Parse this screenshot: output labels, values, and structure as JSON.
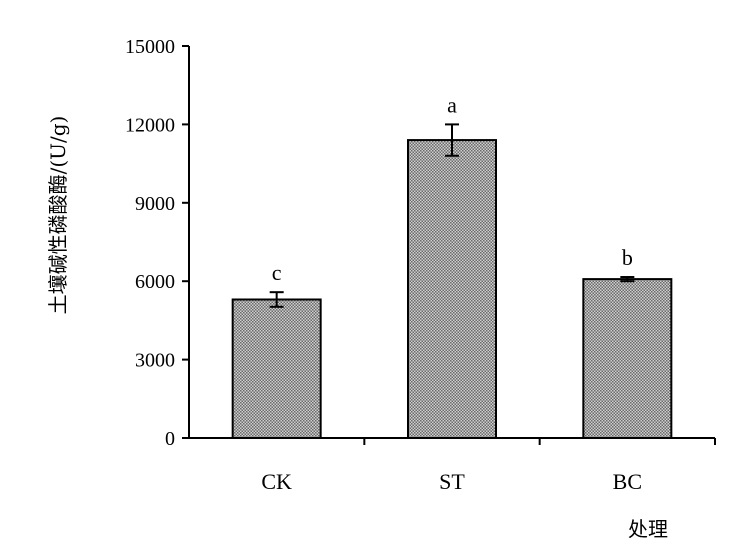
{
  "chart_data": {
    "type": "bar",
    "categories": [
      "CK",
      "ST",
      "BC"
    ],
    "values": [
      5300,
      11400,
      6080
    ],
    "errors": [
      280,
      600,
      80
    ],
    "significance": [
      "c",
      "a",
      "b"
    ],
    "xlabel": "处理",
    "ylabel": "土壤碱性磷酸酶/(U/g)",
    "ylim": [
      0,
      15000
    ],
    "yticks": [
      0,
      3000,
      6000,
      9000,
      12000,
      15000
    ],
    "grid": false,
    "legend": "none",
    "colors": {
      "bar_fill": "#9a9a9a",
      "bar_stroke": "#000000",
      "axis": "#000000"
    }
  }
}
